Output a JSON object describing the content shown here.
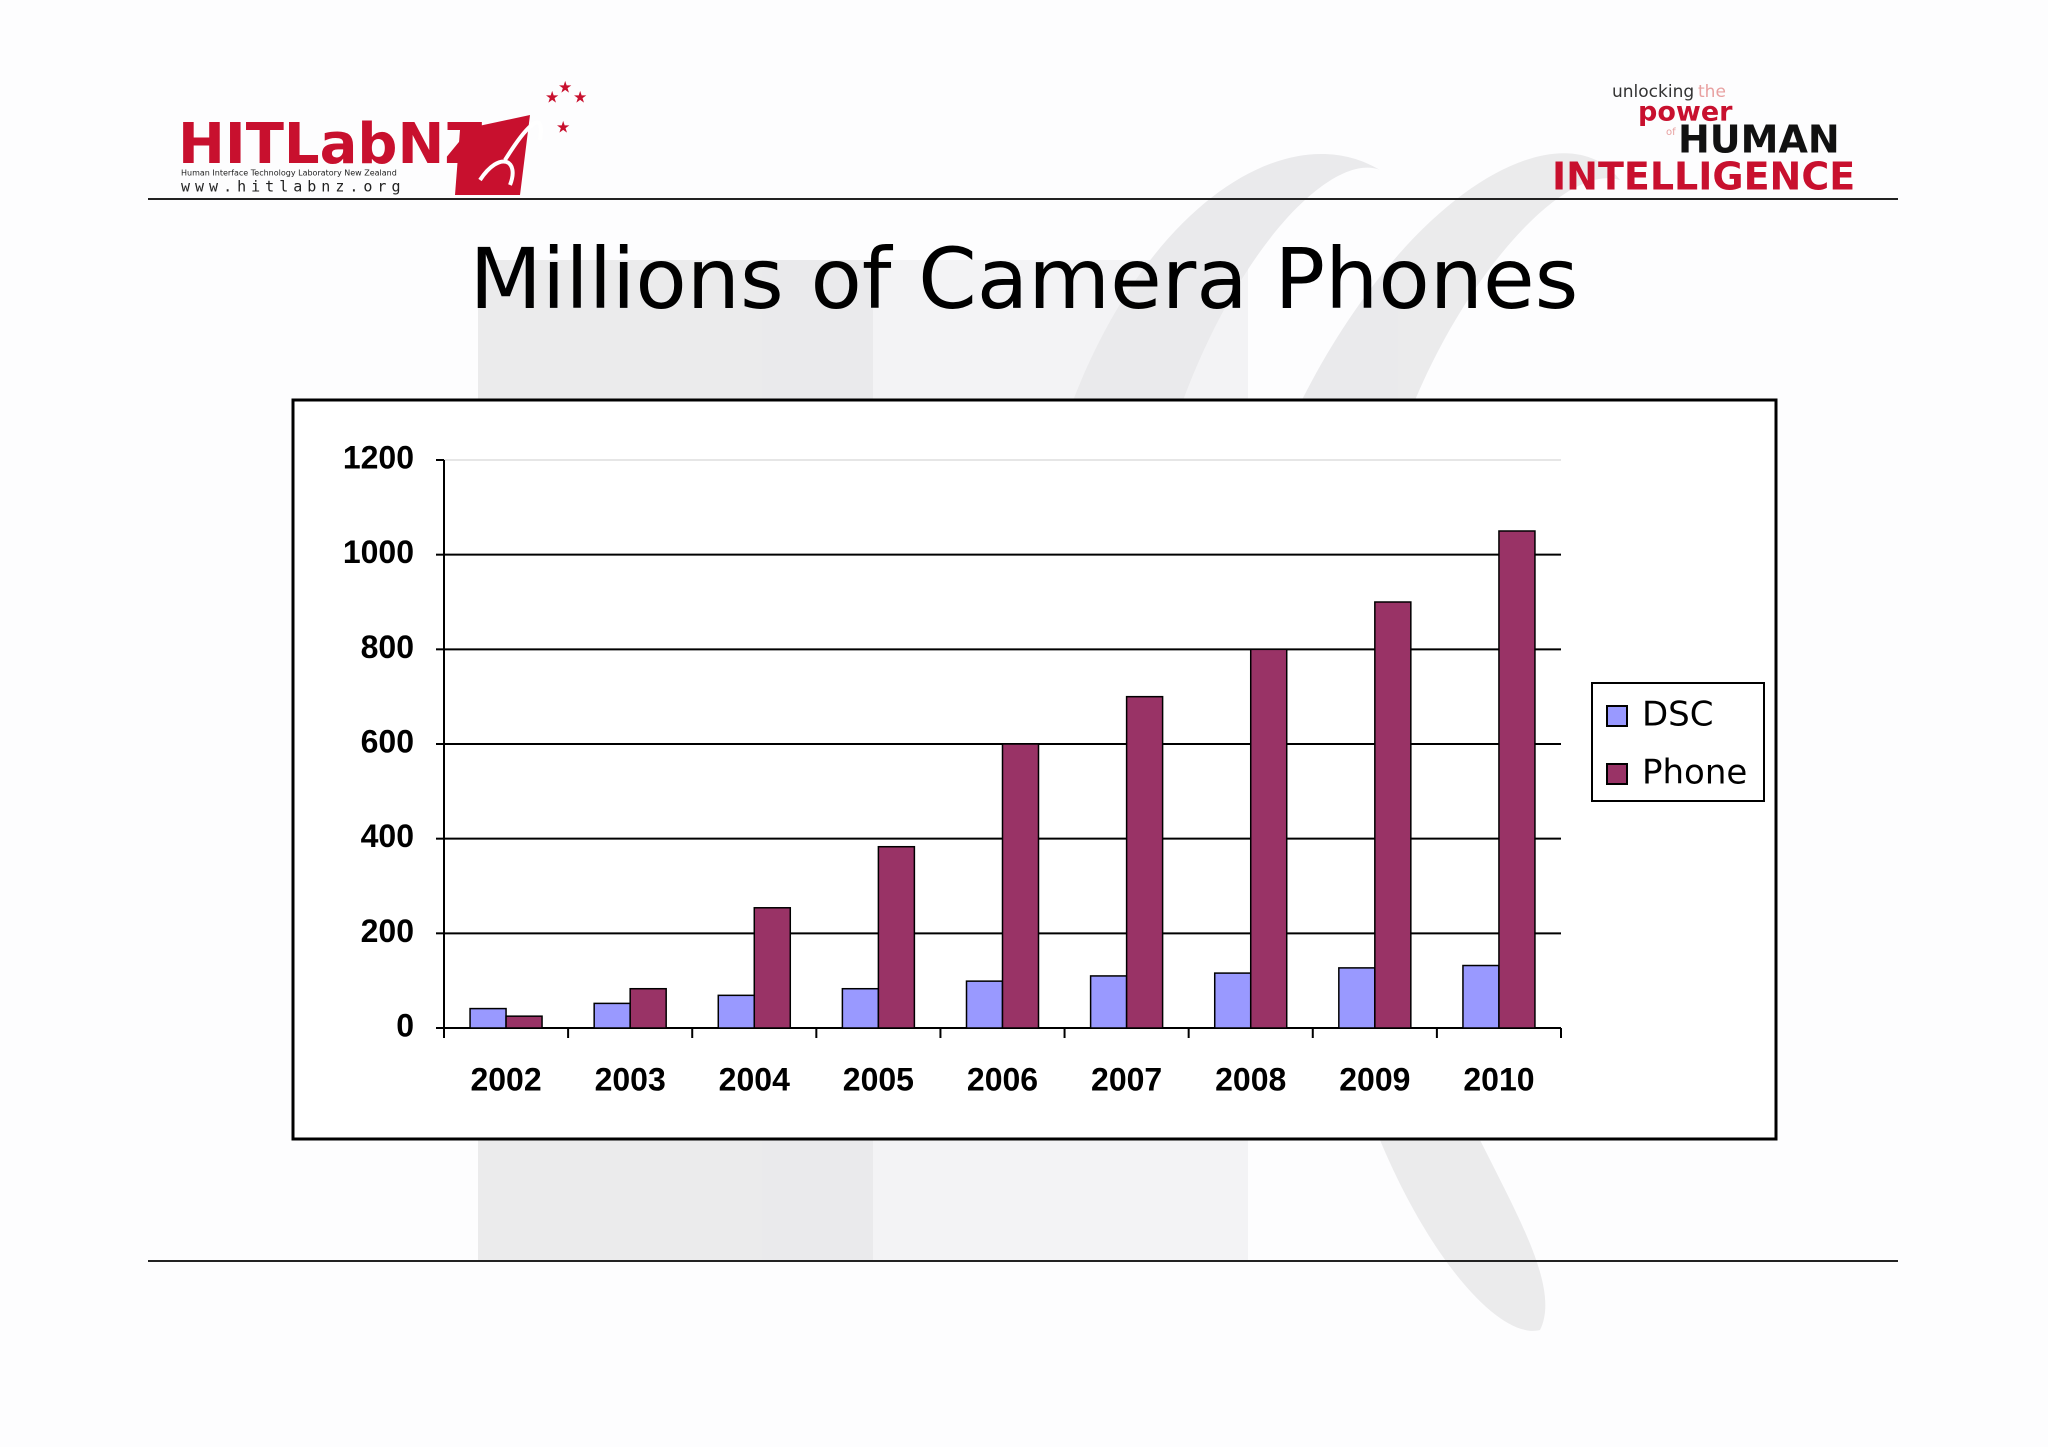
{
  "header": {
    "logo": "HITLabNZ",
    "logo_subtitle": "Human Interface Technology Laboratory New Zealand",
    "logo_url": "www.hitlabnz.org",
    "tagline": {
      "line1": "unlocking",
      "the": "the",
      "power": "power",
      "of": "of",
      "human": "HUMAN",
      "intelligence": "INTELLIGENCE"
    }
  },
  "chart_data": {
    "type": "bar",
    "title": "Millions of Camera Phones",
    "categories": [
      "2002",
      "2003",
      "2004",
      "2005",
      "2006",
      "2007",
      "2008",
      "2009",
      "2010"
    ],
    "series": [
      {
        "name": "DSC",
        "color": "#9999ff",
        "values": [
          41,
          52,
          69,
          83,
          99,
          110,
          116,
          127,
          132
        ]
      },
      {
        "name": "Phone",
        "color": "#993366",
        "values": [
          25,
          83,
          254,
          383,
          600,
          700,
          800,
          900,
          1050
        ]
      }
    ],
    "ylim": [
      0,
      1200
    ],
    "yticks": [
      0,
      200,
      400,
      600,
      800,
      1000,
      1200
    ],
    "grid": true,
    "legend": "right"
  }
}
